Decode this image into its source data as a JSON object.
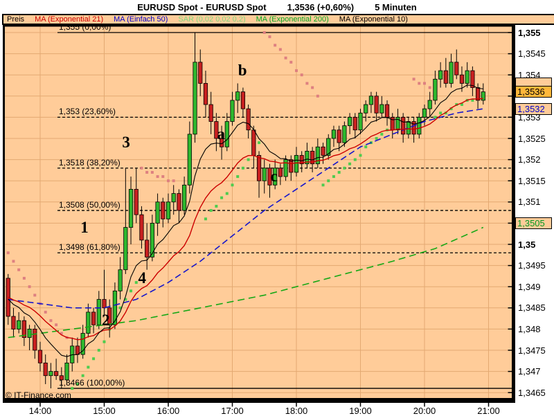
{
  "title": {
    "instrument": "EURUSD Spot - EURUSD Spot",
    "quote": "1,3536 (+0,60%)",
    "timeframe": "5 Minuten"
  },
  "legend": {
    "items": [
      {
        "label": "Preis",
        "color": "#000000"
      },
      {
        "label": "MA (Exponential 21)",
        "color": "#cc0000"
      },
      {
        "label": "MA (Einfach 50)",
        "color": "#0000cc"
      },
      {
        "label": "SAR (0,02 0,02 0,2)",
        "color": "#7fd87f"
      },
      {
        "label": "MA (Exponential 200)",
        "color": "#00aa22"
      },
      {
        "label": "MA (Exponential 10)",
        "color": "#000000"
      }
    ]
  },
  "watermark": "© IT-Finance.com",
  "y_axis": {
    "title": "Preis",
    "range": {
      "min": 1.3465,
      "max": 1.355,
      "tick": 0.0005
    },
    "labels": [
      {
        "text": "1,355",
        "price": 1.355,
        "bold": true
      },
      {
        "text": "1,3545",
        "price": 1.3545,
        "bold": false
      },
      {
        "text": "1,354",
        "price": 1.354,
        "bold": false
      },
      {
        "text": "1,353",
        "price": 1.353,
        "bold": false
      },
      {
        "text": "1,3525",
        "price": 1.3525,
        "bold": false
      },
      {
        "text": "1,352",
        "price": 1.352,
        "bold": false
      },
      {
        "text": "1,3515",
        "price": 1.3515,
        "bold": false
      },
      {
        "text": "1,351",
        "price": 1.351,
        "bold": false
      },
      {
        "text": "1,35",
        "price": 1.35,
        "bold": true
      },
      {
        "text": "1,3495",
        "price": 1.3495,
        "bold": false
      },
      {
        "text": "1,349",
        "price": 1.349,
        "bold": false
      },
      {
        "text": "1,3485",
        "price": 1.3485,
        "bold": false
      },
      {
        "text": "1,348",
        "price": 1.348,
        "bold": false
      },
      {
        "text": "1,3475",
        "price": 1.3475,
        "bold": false
      },
      {
        "text": "1,347",
        "price": 1.347,
        "bold": false
      },
      {
        "text": "1,3465",
        "price": 1.3465,
        "bold": false
      }
    ]
  },
  "axis_boxes": [
    {
      "value": "1,3536",
      "price": 1.3536,
      "bg": "#ffb73a",
      "color": "#000000",
      "meaning": "last price"
    },
    {
      "value": "1,3532",
      "price": 1.3532,
      "bg": "#ffcc99",
      "color": "#0000cc",
      "meaning": "MA Einfach 50"
    },
    {
      "value": "1,3505",
      "price": 1.3505,
      "bg": "#ffcc99",
      "color": "#009922",
      "meaning": "MA Exponential 200"
    }
  ],
  "x_axis": {
    "labels": [
      {
        "text": "14:00",
        "hour": 14
      },
      {
        "text": "15:00",
        "hour": 15
      },
      {
        "text": "16:00",
        "hour": 16
      },
      {
        "text": "17:00",
        "hour": 17
      },
      {
        "text": "18:00",
        "hour": 18
      },
      {
        "text": "19:00",
        "hour": 19
      },
      {
        "text": "20:00",
        "hour": 20
      },
      {
        "text": "21:00",
        "hour": 21
      }
    ]
  },
  "chart_data": {
    "type": "candlestick",
    "instrument": "EURUSD Spot",
    "timeframe": "5 Minuten",
    "start_time": "13:30",
    "interval_minutes": 5,
    "last_price": 1.3536,
    "change_pct": "+0,60%",
    "grid": true,
    "colors": {
      "background": "#ffcc99",
      "grid": "#e3a972",
      "border": "#000000",
      "candle_up": "#2eb82e",
      "candle_down": "#c82020",
      "wick": "#000000",
      "sar_above": "#de8080",
      "sar_below": "#4ecc4e",
      "ma10": "#000000",
      "ma21": "#cc0000",
      "ma50": "#1515cc",
      "ma200": "#15a815",
      "fib": "#000000"
    },
    "candles": [
      [
        1.3492,
        1.3493,
        1.3481,
        1.3483
      ],
      [
        1.3483,
        1.3485,
        1.3478,
        1.348
      ],
      [
        1.348,
        1.3484,
        1.3479,
        1.3482
      ],
      [
        1.3482,
        1.3483,
        1.3476,
        1.3478
      ],
      [
        1.3478,
        1.3481,
        1.3475,
        1.348
      ],
      [
        1.348,
        1.3481,
        1.3473,
        1.3475
      ],
      [
        1.3475,
        1.3477,
        1.347,
        1.3472
      ],
      [
        1.3472,
        1.3474,
        1.3467,
        1.3469
      ],
      [
        1.3469,
        1.3472,
        1.3466,
        1.347
      ],
      [
        1.347,
        1.3473,
        1.3468,
        1.3469
      ],
      [
        1.3469,
        1.3471,
        1.3466,
        1.3468
      ],
      [
        1.3468,
        1.3474,
        1.3467,
        1.3472
      ],
      [
        1.3472,
        1.3478,
        1.347,
        1.3476
      ],
      [
        1.3476,
        1.3478,
        1.3472,
        1.3474
      ],
      [
        1.3474,
        1.3481,
        1.3473,
        1.3479
      ],
      [
        1.3479,
        1.3486,
        1.3478,
        1.3484
      ],
      [
        1.3484,
        1.3485,
        1.3479,
        1.3481
      ],
      [
        1.3481,
        1.3489,
        1.348,
        1.3487
      ],
      [
        1.3487,
        1.3494,
        1.3483,
        1.3485
      ],
      [
        1.3485,
        1.3487,
        1.3478,
        1.3481
      ],
      [
        1.3481,
        1.3491,
        1.348,
        1.3489
      ],
      [
        1.3489,
        1.3497,
        1.3487,
        1.3494
      ],
      [
        1.3494,
        1.3518,
        1.3493,
        1.3504
      ],
      [
        1.3504,
        1.3516,
        1.35,
        1.3513
      ],
      [
        1.3513,
        1.3518,
        1.3505,
        1.3507
      ],
      [
        1.3507,
        1.3509,
        1.3499,
        1.3501
      ],
      [
        1.3501,
        1.3505,
        1.3494,
        1.3497
      ],
      [
        1.3497,
        1.3507,
        1.3496,
        1.3505
      ],
      [
        1.3505,
        1.3512,
        1.3502,
        1.351
      ],
      [
        1.351,
        1.3511,
        1.3504,
        1.3506
      ],
      [
        1.3506,
        1.3512,
        1.3505,
        1.351
      ],
      [
        1.351,
        1.3514,
        1.3507,
        1.3512
      ],
      [
        1.3512,
        1.3513,
        1.3505,
        1.3508
      ],
      [
        1.3508,
        1.3516,
        1.3507,
        1.3514
      ],
      [
        1.3514,
        1.3529,
        1.3512,
        1.3526
      ],
      [
        1.3526,
        1.355,
        1.3524,
        1.3543
      ],
      [
        1.3543,
        1.3546,
        1.3535,
        1.3538
      ],
      [
        1.3538,
        1.3541,
        1.353,
        1.3533
      ],
      [
        1.3533,
        1.3536,
        1.3526,
        1.3529
      ],
      [
        1.3529,
        1.3531,
        1.3522,
        1.3525
      ],
      [
        1.3525,
        1.3528,
        1.352,
        1.3523
      ],
      [
        1.3523,
        1.3531,
        1.3522,
        1.3529
      ],
      [
        1.3529,
        1.3536,
        1.3528,
        1.3534
      ],
      [
        1.3534,
        1.3538,
        1.3531,
        1.3536
      ],
      [
        1.3536,
        1.3537,
        1.353,
        1.3532
      ],
      [
        1.3532,
        1.3533,
        1.3525,
        1.3527
      ],
      [
        1.3527,
        1.3528,
        1.3518,
        1.3521
      ],
      [
        1.3521,
        1.3522,
        1.3511,
        1.3515
      ],
      [
        1.3515,
        1.352,
        1.3512,
        1.3518
      ],
      [
        1.3518,
        1.3519,
        1.3511,
        1.3514
      ],
      [
        1.3514,
        1.352,
        1.3513,
        1.3518
      ],
      [
        1.3518,
        1.3519,
        1.3514,
        1.3516
      ],
      [
        1.3516,
        1.3521,
        1.3515,
        1.352
      ],
      [
        1.352,
        1.3521,
        1.3515,
        1.3517
      ],
      [
        1.3517,
        1.3523,
        1.3516,
        1.3521
      ],
      [
        1.3521,
        1.3522,
        1.3517,
        1.3519
      ],
      [
        1.3519,
        1.3524,
        1.3518,
        1.3522
      ],
      [
        1.3522,
        1.3523,
        1.3517,
        1.3519
      ],
      [
        1.3519,
        1.3525,
        1.3518,
        1.3523
      ],
      [
        1.3523,
        1.3524,
        1.3519,
        1.3521
      ],
      [
        1.3521,
        1.3526,
        1.352,
        1.3525
      ],
      [
        1.3525,
        1.3528,
        1.3523,
        1.3527
      ],
      [
        1.3527,
        1.3528,
        1.3522,
        1.3524
      ],
      [
        1.3524,
        1.3529,
        1.3523,
        1.3528
      ],
      [
        1.3528,
        1.3531,
        1.3526,
        1.353
      ],
      [
        1.353,
        1.3531,
        1.3525,
        1.3527
      ],
      [
        1.3527,
        1.3532,
        1.3526,
        1.3531
      ],
      [
        1.3531,
        1.3534,
        1.3529,
        1.3533
      ],
      [
        1.3533,
        1.3536,
        1.3531,
        1.3535
      ],
      [
        1.3535,
        1.3536,
        1.3529,
        1.3531
      ],
      [
        1.3531,
        1.3535,
        1.353,
        1.3533
      ],
      [
        1.3533,
        1.3534,
        1.3528,
        1.353
      ],
      [
        1.353,
        1.3531,
        1.3525,
        1.3527
      ],
      [
        1.3527,
        1.3532,
        1.3526,
        1.353
      ],
      [
        1.353,
        1.3531,
        1.3524,
        1.3526
      ],
      [
        1.3526,
        1.353,
        1.3525,
        1.3529
      ],
      [
        1.3529,
        1.353,
        1.3524,
        1.3526
      ],
      [
        1.3526,
        1.3531,
        1.3525,
        1.353
      ],
      [
        1.353,
        1.3533,
        1.3528,
        1.3532
      ],
      [
        1.3532,
        1.3536,
        1.353,
        1.3534
      ],
      [
        1.3534,
        1.3541,
        1.3533,
        1.3539
      ],
      [
        1.3539,
        1.3543,
        1.3537,
        1.3541
      ],
      [
        1.3541,
        1.3544,
        1.3537,
        1.3538
      ],
      [
        1.3538,
        1.3545,
        1.3537,
        1.3543
      ],
      [
        1.3543,
        1.3546,
        1.3539,
        1.354
      ],
      [
        1.354,
        1.3542,
        1.3536,
        1.3538
      ],
      [
        1.3538,
        1.3543,
        1.3537,
        1.3541
      ],
      [
        1.3541,
        1.3542,
        1.3535,
        1.3537
      ],
      [
        1.3537,
        1.3538,
        1.3532,
        1.3534
      ],
      [
        1.3534,
        1.3538,
        1.3533,
        1.3536
      ]
    ],
    "moving_averages": {
      "ma_exponential_10": {
        "period": 10,
        "color": "#000000",
        "computed_from_closes": true
      },
      "ma_exponential_21": {
        "period": 21,
        "color": "#cc0000",
        "computed_from_closes": true
      },
      "ma_einfach_50": {
        "color": "#1515cc",
        "dashed": true,
        "points": [
          [
            0,
            1.3487
          ],
          [
            6,
            1.3486
          ],
          [
            12,
            1.3485
          ],
          [
            18,
            1.3485
          ],
          [
            24,
            1.3487
          ],
          [
            30,
            1.3491
          ],
          [
            36,
            1.3496
          ],
          [
            42,
            1.3502
          ],
          [
            48,
            1.3508
          ],
          [
            54,
            1.3513
          ],
          [
            60,
            1.3518
          ],
          [
            66,
            1.3523
          ],
          [
            72,
            1.3526
          ],
          [
            78,
            1.3529
          ],
          [
            84,
            1.3531
          ],
          [
            89,
            1.3532
          ]
        ]
      },
      "ma_exponential_200": {
        "color": "#15a815",
        "dashed": true,
        "points": [
          [
            0,
            1.3478
          ],
          [
            12,
            1.348
          ],
          [
            24,
            1.3482
          ],
          [
            36,
            1.3485
          ],
          [
            48,
            1.3488
          ],
          [
            60,
            1.3492
          ],
          [
            72,
            1.3496
          ],
          [
            80,
            1.3499
          ],
          [
            89,
            1.3504
          ]
        ]
      }
    },
    "sar_segments": [
      {
        "position": "above",
        "points": [
          [
            0,
            1.3498
          ],
          [
            1,
            1.3496
          ],
          [
            2,
            1.3494
          ],
          [
            3,
            1.3492
          ],
          [
            4,
            1.349
          ],
          [
            5,
            1.3488
          ],
          [
            6,
            1.3486
          ],
          [
            7,
            1.3484
          ],
          [
            8,
            1.3482
          ],
          [
            9,
            1.3481
          ],
          [
            10,
            1.3479
          ],
          [
            11,
            1.3478
          ]
        ]
      },
      {
        "position": "below",
        "points": [
          [
            12,
            1.3466
          ],
          [
            13,
            1.3467
          ],
          [
            14,
            1.3469
          ],
          [
            15,
            1.3471
          ],
          [
            16,
            1.3473
          ],
          [
            17,
            1.3475
          ],
          [
            18,
            1.3477
          ],
          [
            19,
            1.348
          ],
          [
            20,
            1.3482
          ],
          [
            21,
            1.3485
          ],
          [
            22,
            1.3487
          ],
          [
            23,
            1.3489
          ],
          [
            24,
            1.3491
          ]
        ]
      },
      {
        "position": "above",
        "points": [
          [
            25,
            1.3518
          ],
          [
            26,
            1.3517
          ],
          [
            27,
            1.3517
          ],
          [
            28,
            1.3516
          ],
          [
            29,
            1.3516
          ],
          [
            30,
            1.3515
          ],
          [
            31,
            1.3515
          ]
        ]
      },
      {
        "position": "below",
        "points": [
          [
            37,
            1.3506
          ],
          [
            38,
            1.3508
          ],
          [
            39,
            1.3509
          ],
          [
            40,
            1.3511
          ],
          [
            41,
            1.3512
          ],
          [
            42,
            1.3514
          ],
          [
            43,
            1.3516
          ],
          [
            44,
            1.3518
          ],
          [
            45,
            1.352
          ],
          [
            46,
            1.3522
          ],
          [
            47,
            1.3524
          ]
        ]
      },
      {
        "position": "above",
        "points": [
          [
            48,
            1.355
          ],
          [
            49,
            1.3549
          ],
          [
            50,
            1.3547
          ],
          [
            51,
            1.3546
          ],
          [
            52,
            1.3544
          ],
          [
            53,
            1.3543
          ],
          [
            54,
            1.3541
          ],
          [
            55,
            1.354
          ],
          [
            56,
            1.3538
          ],
          [
            57,
            1.3537
          ],
          [
            58,
            1.3535
          ]
        ]
      },
      {
        "position": "below",
        "points": [
          [
            59,
            1.3514
          ],
          [
            60,
            1.3515
          ],
          [
            61,
            1.3516
          ],
          [
            62,
            1.3517
          ],
          [
            63,
            1.3518
          ],
          [
            64,
            1.3519
          ],
          [
            65,
            1.352
          ],
          [
            66,
            1.3521
          ],
          [
            67,
            1.3523
          ],
          [
            68,
            1.3524
          ],
          [
            69,
            1.3525
          ],
          [
            70,
            1.3526
          ],
          [
            71,
            1.3527
          ],
          [
            72,
            1.3528
          ],
          [
            73,
            1.3528
          ],
          [
            74,
            1.3529
          ]
        ]
      },
      {
        "position": "above",
        "points": [
          [
            76,
            1.3539
          ],
          [
            77,
            1.3538
          ],
          [
            78,
            1.3538
          ],
          [
            79,
            1.3537
          ]
        ]
      },
      {
        "position": "below",
        "points": [
          [
            80,
            1.353
          ],
          [
            81,
            1.3531
          ],
          [
            82,
            1.3531
          ],
          [
            83,
            1.3532
          ],
          [
            84,
            1.3533
          ],
          [
            85,
            1.3533
          ],
          [
            86,
            1.3534
          ],
          [
            87,
            1.3534
          ],
          [
            88,
            1.3535
          ],
          [
            89,
            1.3535
          ]
        ]
      }
    ],
    "fibonacci_levels": [
      {
        "label": "1,355 (0,00%)",
        "price": 1.355,
        "style": "solid"
      },
      {
        "label": "1,353 (23,60%)",
        "price": 1.353,
        "style": "dashed"
      },
      {
        "label": "1,3518 (38,20%)",
        "price": 1.3518,
        "style": "dashed"
      },
      {
        "label": "1,3508 (50,00%)",
        "price": 1.3508,
        "style": "dashed"
      },
      {
        "label": "1,3498 (61,80%)",
        "price": 1.3498,
        "style": "dashed"
      },
      {
        "label": "1,3466 (100,00%)",
        "price": 1.3466,
        "style": "solid"
      }
    ],
    "wave_labels": [
      {
        "label": "1",
        "index": 14.3,
        "price": 1.3504
      },
      {
        "label": "2",
        "index": 18.3,
        "price": 1.3482
      },
      {
        "label": "3",
        "index": 22.1,
        "price": 1.3524
      },
      {
        "label": "4",
        "index": 25.1,
        "price": 1.3492
      },
      {
        "label": "a",
        "index": 39.9,
        "price": 1.3526
      },
      {
        "label": "b",
        "index": 43.9,
        "price": 1.3541
      },
      {
        "label": "c",
        "index": 49.8,
        "price": 1.3516
      }
    ]
  }
}
